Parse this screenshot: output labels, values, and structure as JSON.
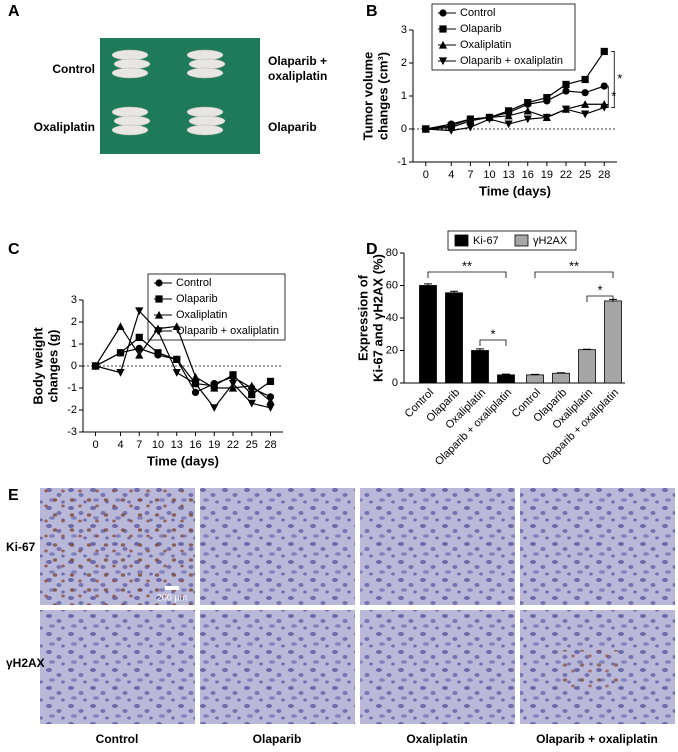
{
  "panel_letters": [
    "A",
    "B",
    "C",
    "D",
    "E"
  ],
  "photo_labels": {
    "control": "Control",
    "combination": [
      "Olaparib +",
      "oxaliplatin"
    ],
    "oxaliplatin": "Oxaliplatin",
    "olaparib": "Olaparib"
  },
  "chart_data": [
    {
      "type": "line",
      "xlabel": "Time (days)",
      "ylabel": [
        "Tumor volume",
        "changes (cm³)"
      ],
      "x": [
        0,
        4,
        7,
        10,
        13,
        16,
        19,
        22,
        25,
        28
      ],
      "xlim": [
        -2,
        30
      ],
      "xticks": [
        0,
        4,
        7,
        10,
        13,
        16,
        19,
        22,
        25,
        28
      ],
      "ylim": [
        -1,
        3
      ],
      "yticks": [
        -1,
        0,
        1,
        2,
        3
      ],
      "reference_line": 0,
      "legend": "upper left",
      "series": [
        {
          "name": "Control",
          "color": "#000000",
          "marker": "circle",
          "values": [
            0,
            0.15,
            0.3,
            0.35,
            0.5,
            0.75,
            0.85,
            1.15,
            1.1,
            1.3
          ]
        },
        {
          "name": "Olaparib",
          "color": "#000000",
          "marker": "square",
          "values": [
            0,
            0.1,
            0.3,
            0.35,
            0.55,
            0.8,
            0.95,
            1.35,
            1.5,
            2.35
          ]
        },
        {
          "name": "Oxaliplatin",
          "color": "#000000",
          "marker": "triangle-up",
          "values": [
            0,
            0.05,
            0.25,
            0.35,
            0.4,
            0.55,
            0.35,
            0.6,
            0.75,
            0.75
          ]
        },
        {
          "name": "Olaparib + oxaliplatin",
          "color": "#000000",
          "marker": "triangle-down",
          "values": [
            0,
            -0.05,
            0.05,
            0.3,
            0.15,
            0.3,
            0.35,
            0.6,
            0.45,
            0.65
          ]
        }
      ],
      "annotations": [
        "*",
        "*"
      ]
    },
    {
      "type": "line",
      "xlabel": "Time (days)",
      "ylabel": [
        "Body weight",
        "changes (g)"
      ],
      "x": [
        0,
        4,
        7,
        10,
        13,
        16,
        19,
        22,
        25,
        28
      ],
      "xlim": [
        -2,
        30
      ],
      "xticks": [
        0,
        4,
        7,
        10,
        13,
        16,
        19,
        22,
        25,
        28
      ],
      "ylim": [
        -3,
        3
      ],
      "yticks": [
        -3,
        -2,
        -1,
        0,
        1,
        2,
        3
      ],
      "reference_line": 0,
      "legend": "upper right",
      "series": [
        {
          "name": "Control",
          "color": "#000000",
          "marker": "circle",
          "values": [
            0,
            0.6,
            0.8,
            0.5,
            0.3,
            -1.2,
            -0.8,
            -0.5,
            -1.0,
            -1.4
          ]
        },
        {
          "name": "Olaparib",
          "color": "#000000",
          "marker": "square",
          "values": [
            0,
            0.6,
            1.3,
            0.6,
            0.3,
            -0.8,
            -0.9,
            -0.4,
            -1.3,
            -0.7
          ]
        },
        {
          "name": "Oxaliplatin",
          "color": "#000000",
          "marker": "triangle-up",
          "values": [
            0,
            1.8,
            0.5,
            1.7,
            1.8,
            -0.5,
            -1.0,
            -1.0,
            -0.9,
            -1.6
          ]
        },
        {
          "name": "Olaparib + oxaliplatin",
          "color": "#000000",
          "marker": "triangle-down",
          "values": [
            0,
            -0.3,
            2.5,
            1.6,
            -0.3,
            -0.8,
            -1.9,
            -0.8,
            -1.7,
            -1.9
          ]
        }
      ]
    },
    {
      "type": "bar",
      "ylabel": [
        "Expression of",
        "Ki-67 and γH2AX (%)"
      ],
      "categories": [
        "Control",
        "Olaparib",
        "Oxaliplatin",
        "Olaparib + oxaliplatin",
        "Control",
        "Olaparib",
        "Oxaliplatin",
        "Olaparib + oxaliplatin"
      ],
      "ylim": [
        0,
        80
      ],
      "yticks": [
        0,
        20,
        40,
        60,
        80
      ],
      "legend": "top",
      "series": [
        {
          "name": "Ki-67",
          "color": "#000000",
          "values": [
            60,
            55.5,
            20,
            5,
            null,
            null,
            null,
            null
          ],
          "errors": [
            1,
            1,
            1,
            0.5,
            null,
            null,
            null,
            null
          ]
        },
        {
          "name": "γH2AX",
          "color": "#a6a6a6",
          "values": [
            null,
            null,
            null,
            null,
            5,
            6,
            20.5,
            50.5
          ],
          "errors": [
            null,
            null,
            null,
            null,
            0.3,
            0.3,
            0.3,
            1
          ]
        }
      ],
      "annotations": [
        "**",
        "*",
        "**",
        "*"
      ]
    }
  ],
  "micrographs": {
    "row_labels": [
      "Ki-67",
      "γH2AX"
    ],
    "column_labels": [
      "Control",
      "Olaparib",
      "Oxaliplatin",
      "Olaparib + oxaliplatin"
    ],
    "scale_bar": "200 μm"
  }
}
